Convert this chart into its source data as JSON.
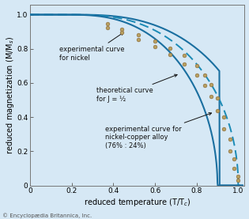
{
  "background_color": "#d6e8f5",
  "plot_bg_color": "#d6e8f5",
  "curve_color_solid": "#1a6fa0",
  "curve_color_dashed": "#1a8ab5",
  "dot_color": "#b8a060",
  "dot_edge_color": "#907040",
  "xlabel": "reduced temperature (T/T$_c$)",
  "ylabel": "reduced magnetization (M/M$_s$)",
  "xlim": [
    0,
    1.03
  ],
  "ylim": [
    0,
    1.06
  ],
  "xticks": [
    0,
    0.2,
    0.4,
    0.6,
    0.8,
    1.0
  ],
  "yticks": [
    0,
    0.2,
    0.4,
    0.6,
    0.8,
    1.0
  ],
  "annotation_nickel": "experimental curve\nfor nickel",
  "annotation_theoretical": "theoretical curve\nfor J = ½",
  "annotation_alloy": "experimental curve for\nnickel-copper alloy\n(76% : 24%)",
  "copyright": "© Encyclopædia Britannica, Inc.",
  "nickel_dots_x": [
    0.37,
    0.44,
    0.52,
    0.6,
    0.67,
    0.74,
    0.8,
    0.84,
    0.87,
    0.9,
    0.93,
    0.96,
    0.98,
    1.0
  ],
  "nickel_dots_y": [
    0.945,
    0.915,
    0.88,
    0.845,
    0.805,
    0.76,
    0.7,
    0.645,
    0.59,
    0.51,
    0.4,
    0.27,
    0.155,
    0.055
  ],
  "alloy_dots_x": [
    0.37,
    0.44,
    0.52,
    0.6,
    0.67,
    0.74,
    0.8,
    0.84,
    0.87,
    0.9,
    0.93,
    0.96,
    0.98,
    1.0
  ],
  "alloy_dots_y": [
    0.925,
    0.895,
    0.855,
    0.812,
    0.765,
    0.71,
    0.645,
    0.585,
    0.52,
    0.44,
    0.33,
    0.2,
    0.1,
    0.03
  ]
}
